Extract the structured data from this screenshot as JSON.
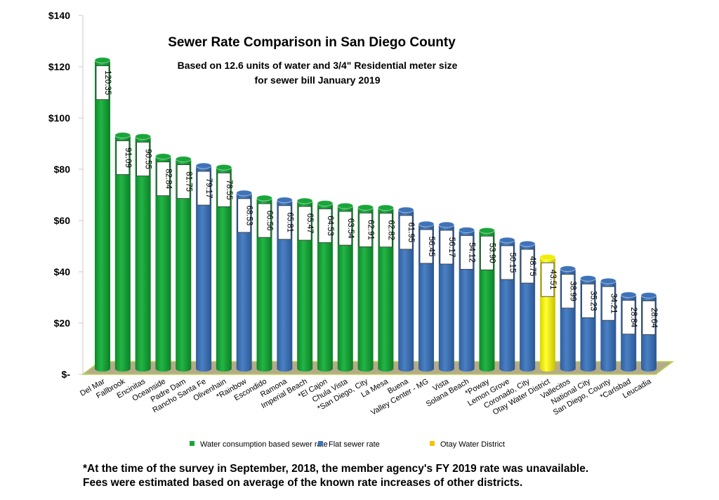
{
  "chart_data": {
    "type": "bar",
    "title": "Sewer Rate Comparison in San Diego County",
    "subtitle_lines": [
      "Based on 12.6 units of water and 3/4\" Residential meter size",
      "for sewer bill January 2019"
    ],
    "ylim": [
      0,
      140
    ],
    "yticks": [
      0,
      20,
      40,
      60,
      80,
      100,
      120,
      140
    ],
    "ytick_labels": [
      "$-",
      "$20",
      "$40",
      "$60",
      "$80",
      "$100",
      "$120",
      "$140"
    ],
    "grid": false,
    "legend_position": "bottom",
    "categories": [
      "Del Mar",
      "Fallbrook",
      "Encinitas",
      "Oceanside",
      "Padre Dam",
      "Rancho Santa Fe",
      "Olivenhain",
      "*Rainbow",
      "Escondido",
      "Ramona",
      "Imperial Beach",
      "*El Cajon",
      "Chula Vista",
      "*San Diego, City",
      "La Mesa",
      "Buena",
      "Valley Center - MG",
      "Vista",
      "Solana Beach",
      "*Poway",
      "Lemon Grove",
      "Coronado, City",
      "Otay Water District",
      "Vallecitos",
      "National City",
      "San Diego, County",
      "*Carlsbad",
      "Leucadia"
    ],
    "values": [
      120.35,
      91.09,
      90.55,
      82.84,
      81.75,
      79.17,
      78.55,
      68.53,
      66.56,
      65.81,
      65.47,
      64.53,
      63.54,
      62.91,
      62.82,
      61.95,
      56.45,
      56.17,
      54.12,
      53.9,
      50.15,
      48.75,
      43.51,
      38.99,
      35.23,
      34.21,
      28.84,
      28.64
    ],
    "value_labels": [
      "120.35",
      "91.09",
      "90.55",
      "82.84",
      "81.75",
      "79.17",
      "78.55",
      "68.53",
      "66.56",
      "65.81",
      "65.47",
      "64.53",
      "63.54",
      "62.91",
      "62.82",
      "61.95",
      "56.45",
      "56.17",
      "54.12",
      "53.90",
      "50.15",
      "48.75",
      "43.51",
      "38.99",
      "35.23",
      "34.21",
      "28.84",
      "28.64"
    ],
    "bar_series": [
      "water",
      "water",
      "water",
      "water",
      "water",
      "flat",
      "water",
      "flat",
      "water",
      "flat",
      "water",
      "water",
      "water",
      "water",
      "water",
      "flat",
      "flat",
      "flat",
      "flat",
      "water",
      "flat",
      "flat",
      "otay",
      "flat",
      "flat",
      "flat",
      "flat",
      "flat"
    ],
    "series": [
      {
        "key": "water",
        "name": "Water consumption based sewer rate",
        "color": "#1aa53a"
      },
      {
        "key": "flat",
        "name": "Flat sewer rate",
        "color": "#3f73b8"
      },
      {
        "key": "otay",
        "name": "Otay Water District",
        "color": "#f2ee00"
      }
    ]
  },
  "footnote": {
    "line1": "*At the time of the survey in September, 2018, the member agency's FY 2019 rate was unavailable.",
    "line2": "Fees were estimated based on average of the known rate increases of other districts."
  }
}
